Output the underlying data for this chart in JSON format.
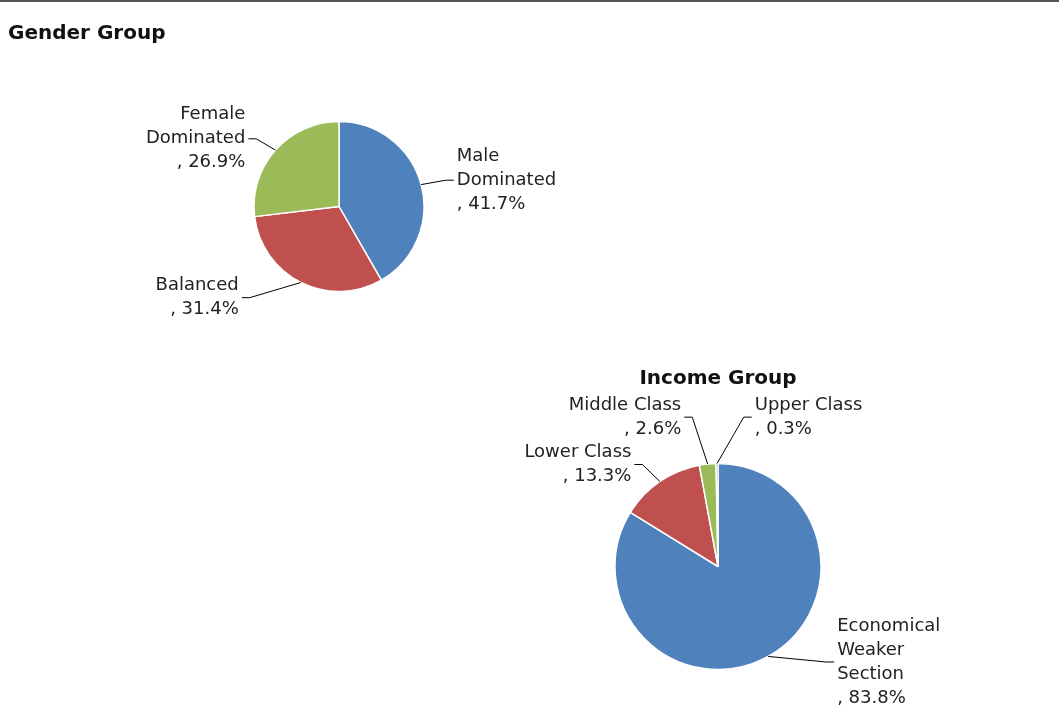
{
  "chart_data": [
    {
      "type": "pie",
      "title": "Gender Group",
      "categories": [
        "Male Dominated",
        "Balanced",
        "Female Dominated"
      ],
      "values": [
        41.7,
        31.4,
        26.9
      ],
      "value_labels": [
        ", 41.7%",
        ", 31.4%",
        ", 26.9%"
      ],
      "colors": [
        "#4f81bd",
        "#c0504d",
        "#9bbb59"
      ]
    },
    {
      "type": "pie",
      "title": "Income Group",
      "categories": [
        "Economical Weaker Section",
        "Lower Class",
        "Middle Class",
        "Upper Class"
      ],
      "values": [
        83.8,
        13.3,
        2.6,
        0.3
      ],
      "value_labels": [
        ", 83.8%",
        ", 13.3%",
        ", 2.6%",
        ", 0.3%"
      ],
      "colors": [
        "#4f81bd",
        "#c0504d",
        "#9bbb59",
        "#8064a2"
      ]
    }
  ]
}
